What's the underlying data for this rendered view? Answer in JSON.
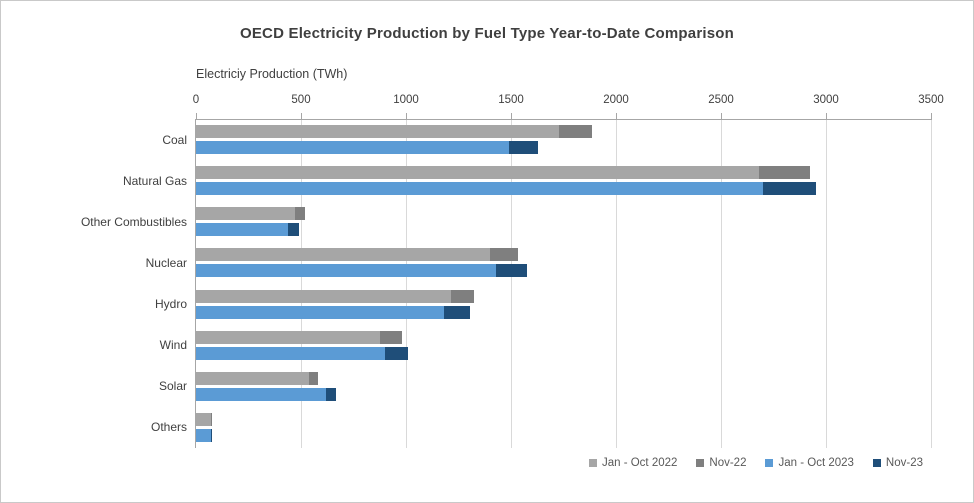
{
  "chart_data": {
    "type": "bar",
    "orientation": "horizontal",
    "stacked": true,
    "title": "OECD Electricity Production by Fuel Type Year-to-Date Comparison",
    "xlabel": "Electriciy Production (TWh)",
    "ylabel": "",
    "xlim": [
      0,
      3500
    ],
    "x_ticks": [
      0,
      500,
      1000,
      1500,
      2000,
      2500,
      3000,
      3500
    ],
    "grid": true,
    "legend_position": "bottom-right",
    "categories": [
      "Coal",
      "Natural Gas",
      "Other Combustibles",
      "Nuclear",
      "Hydro",
      "Wind",
      "Solar",
      "Others"
    ],
    "series": [
      {
        "name": "Jan - Oct 2022",
        "color": "#A6A6A6",
        "bar": "top",
        "values": [
          1730,
          2680,
          470,
          1400,
          1215,
          875,
          540,
          70
        ]
      },
      {
        "name": "Nov-22",
        "color": "#7F7F7F",
        "bar": "top",
        "values": [
          155,
          245,
          50,
          135,
          110,
          105,
          40,
          7
        ]
      },
      {
        "name": "Jan - Oct 2023",
        "color": "#5B9BD5",
        "bar": "bottom",
        "values": [
          1490,
          2700,
          440,
          1430,
          1180,
          900,
          620,
          70
        ]
      },
      {
        "name": "Nov-23",
        "color": "#1F4E79",
        "bar": "bottom",
        "values": [
          140,
          250,
          50,
          145,
          125,
          110,
          45,
          8
        ]
      }
    ]
  },
  "colors": {
    "title_text": "#3F3F3F",
    "axis_text": "#404040",
    "legend_text": "#595959",
    "gridline": "#D9D9D9",
    "axis_line": "#A6A6A6",
    "border": "#C9C9C9",
    "background": "#FFFFFF"
  }
}
